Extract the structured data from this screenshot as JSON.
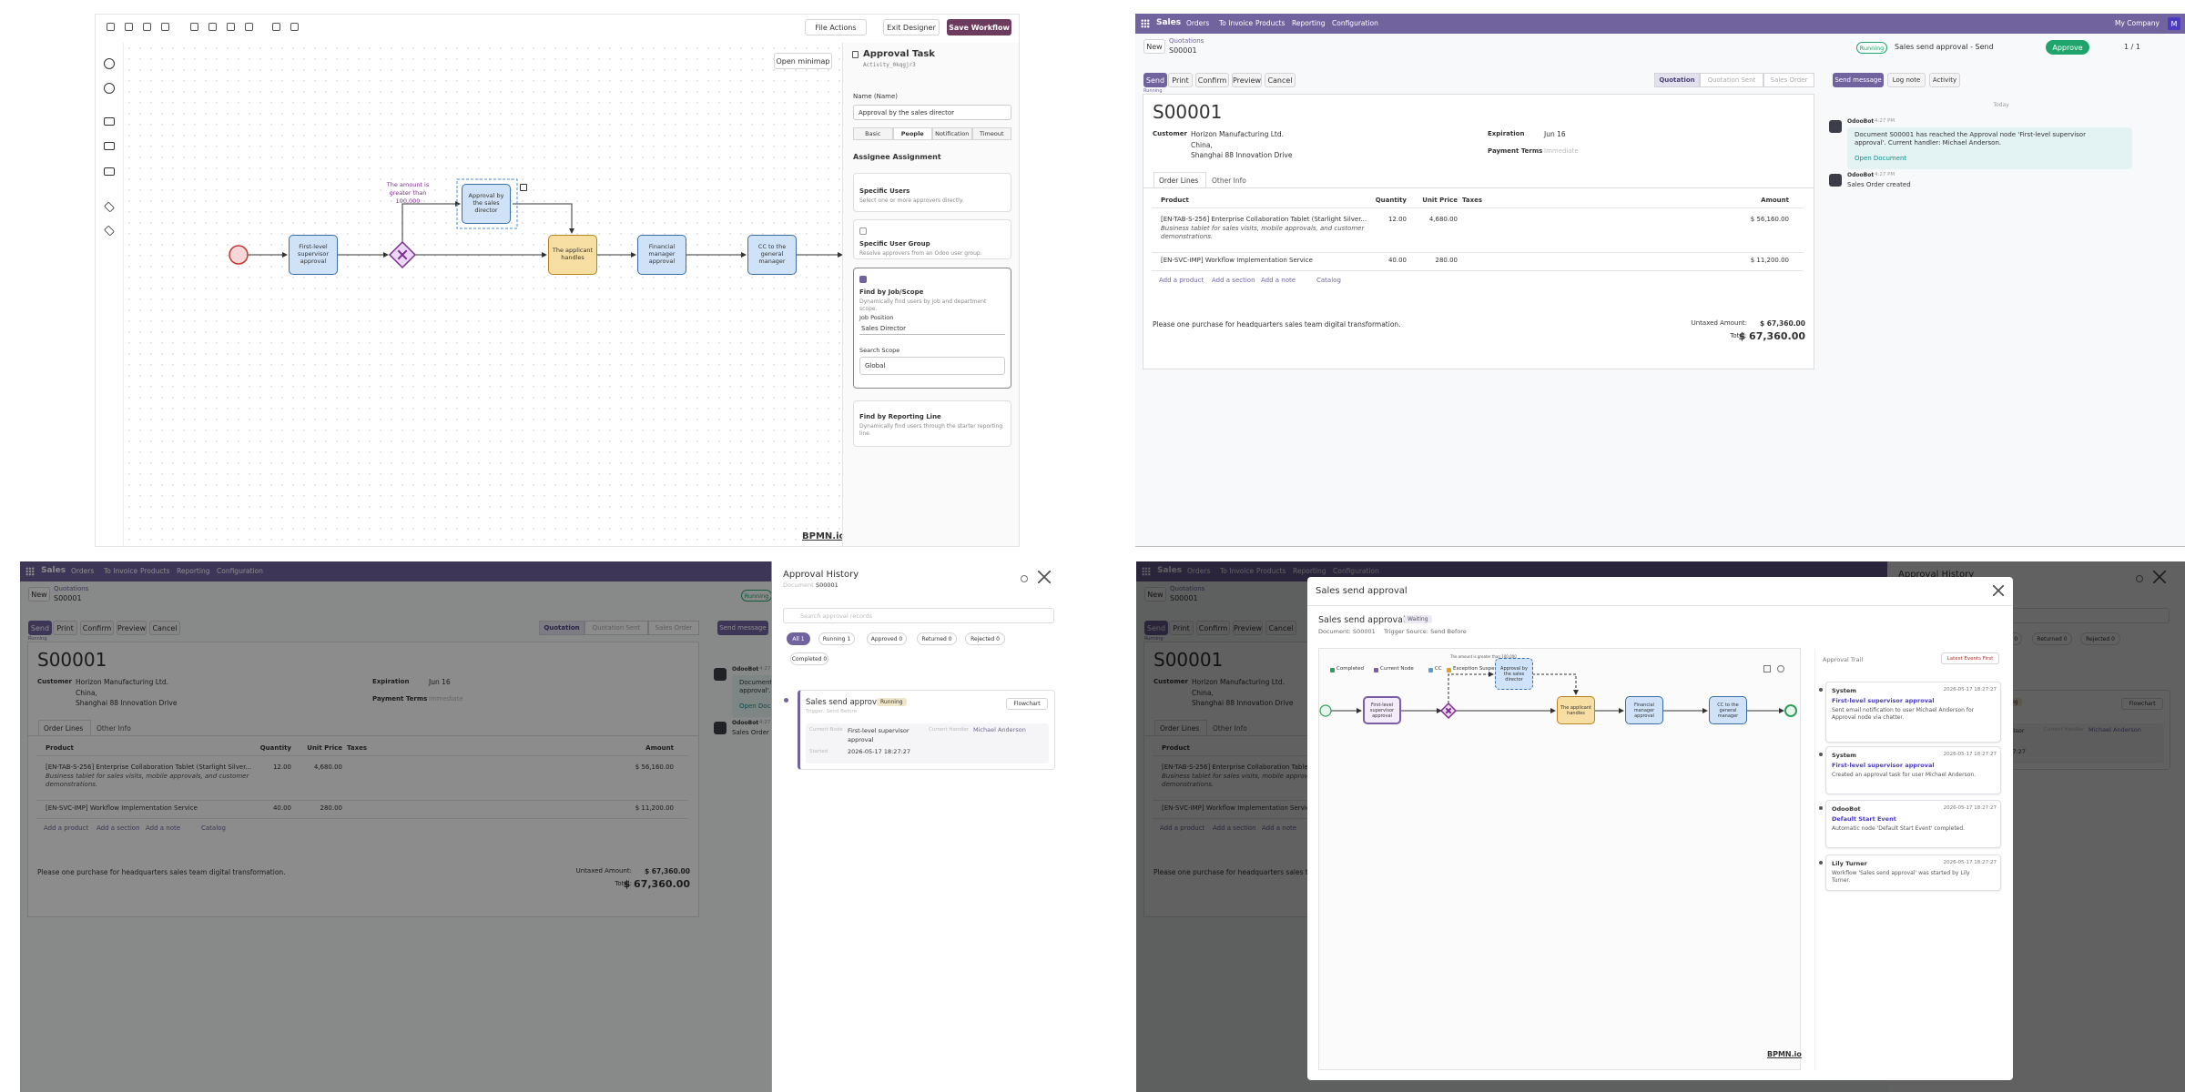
{
  "designer": {
    "toolbar": {
      "file_actions": "File Actions",
      "exit_designer": "Exit Designer",
      "save_workflow": "Save Workflow"
    },
    "open_minimap": "Open minimap",
    "condition": "The amount is greater than 100,000",
    "nodes": [
      {
        "label": "First-level supervisor approval"
      },
      {
        "label": "Approval by the sales director"
      },
      {
        "label": "The applicant handles"
      },
      {
        "label": "Financial manager approval"
      },
      {
        "label": "CC to the general manager"
      }
    ],
    "watermark": "BPMN.io",
    "panel": {
      "title": "Approval Task",
      "element_id": "Activity_0kqgjr3",
      "name_label": "Name (Name)",
      "name_value": "Approval by the sales director",
      "tabs": [
        "Basic",
        "People",
        "Notification",
        "Timeout"
      ],
      "section": "Assignee Assignment",
      "options": [
        {
          "title": "Specific Users",
          "description": "Select one or more approvers directly."
        },
        {
          "title": "Specific User Group",
          "description": "Resolve approvers from an Odoo user group."
        },
        {
          "title": "Find by Job/Scope",
          "description": "Dynamically find users by job and department scope."
        },
        {
          "title": "Find by Reporting Line",
          "description": "Dynamically find users through the starter reporting line."
        }
      ],
      "job_position_label": "Job Position",
      "job_position": "Sales Director",
      "search_scope_label": "Search Scope",
      "search_scope": "Global"
    }
  },
  "order": {
    "nav": [
      "Sales",
      "Orders",
      "To Invoice",
      "Products",
      "Reporting",
      "Configuration"
    ],
    "company": "My Company",
    "avatar": "M",
    "new": "New",
    "breadcrumb": "Quotations",
    "name": "S00001",
    "status": "Running",
    "workflow": "Sales send approval - Send",
    "approve": "Approve",
    "pager": "1 / 1",
    "actions": [
      "Send",
      "Print",
      "Confirm",
      "Preview",
      "Cancel"
    ],
    "stages": [
      "Quotation",
      "Quotation Sent",
      "Sales Order"
    ],
    "chatter_actions": [
      "Send message",
      "Log note",
      "Activity"
    ],
    "customer_label": "Customer",
    "customer": [
      "Horizon Manufacturing Ltd.",
      "China,",
      "Shanghai 88 Innovation Drive"
    ],
    "expiration_label": "Expiration",
    "expiration": "Jun 16",
    "payment_terms_label": "Payment Terms",
    "payment_terms": "Immediate",
    "tabs": [
      "Order Lines",
      "Other Info"
    ],
    "headers": [
      "Product",
      "Quantity",
      "Unit Price",
      "Taxes",
      "Amount"
    ],
    "lines": [
      {
        "product": "[EN-TAB-S-256] Enterprise Collaboration Tablet (Starlight Silver...",
        "description": "Business tablet for sales visits, mobile approvals, and customer demonstrations.",
        "quantity": "12.00",
        "unit_price": "4,680.00",
        "amount": "$ 56,160.00"
      },
      {
        "product": "[EN-SVC-IMP] Workflow Implementation Service",
        "quantity": "40.00",
        "unit_price": "280.00",
        "amount": "$ 11,200.00"
      }
    ],
    "add_links": [
      "Add a product",
      "Add a section",
      "Add a note",
      "Catalog"
    ],
    "note": "Please one purchase for headquarters sales team digital transformation.",
    "untaxed_label": "Untaxed Amount:",
    "untaxed": "$ 67,360.00",
    "total_label": "Total:",
    "total": "$ 67,360.00",
    "chatter": {
      "today": "Today",
      "messages": [
        {
          "author": "OdooBot",
          "time": "4:27 PM",
          "text": "Document S00001 has reached the Approval node 'First-level supervisor approval'. Current handler: Michael Anderson.",
          "link": "Open Document"
        },
        {
          "author": "OdooBot",
          "time": "4:27 PM",
          "text": "Sales Order created"
        }
      ]
    }
  },
  "history": {
    "title": "Approval History",
    "document_label": "Document",
    "document": "S00001",
    "search_placeholder": "Search approval records",
    "filters": [
      "All 1",
      "Running 1",
      "Approved 0",
      "Returned 0",
      "Rejected 0",
      "Completed 0"
    ],
    "record": {
      "name": "Sales send approval",
      "status": "Running",
      "trigger": "Trigger: Send Before",
      "flowchart": "Flowchart",
      "current_node_label": "Current Node",
      "current_node": "First-level supervisor approval",
      "handler_label": "Current Handler",
      "handler": "Michael Anderson",
      "started_label": "Started",
      "started": "2026-05-17 18:27:27"
    }
  },
  "flow": {
    "title": "Sales send approval",
    "heading": "Sales send approval",
    "status": "Waiting",
    "document": "Document: S00001",
    "trigger": "Trigger Source: Send Before",
    "legend": [
      "Completed",
      "Current Node",
      "CC",
      "Exception Suspended"
    ],
    "trail_title": "Approval Trail",
    "sort": "Latest Events First",
    "events": [
      {
        "actor": "System",
        "time": "2026-05-17 18:27:27",
        "title": "First-level supervisor approval",
        "text": "Sent email notification to user Michael Anderson for Approval node via chatter."
      },
      {
        "actor": "System",
        "time": "2026-05-17 18:27:27",
        "title": "First-level supervisor approval",
        "text": "Created an approval task for user Michael Anderson."
      },
      {
        "actor": "OdooBot",
        "time": "2026-05-17 18:27:27",
        "title": "Default Start Event",
        "text": "Automatic node 'Default Start Event' completed."
      },
      {
        "actor": "Lily Turner",
        "time": "2026-05-17 18:27:27",
        "text": "Workflow 'Sales send approval' was started by Lily Turner."
      }
    ]
  }
}
